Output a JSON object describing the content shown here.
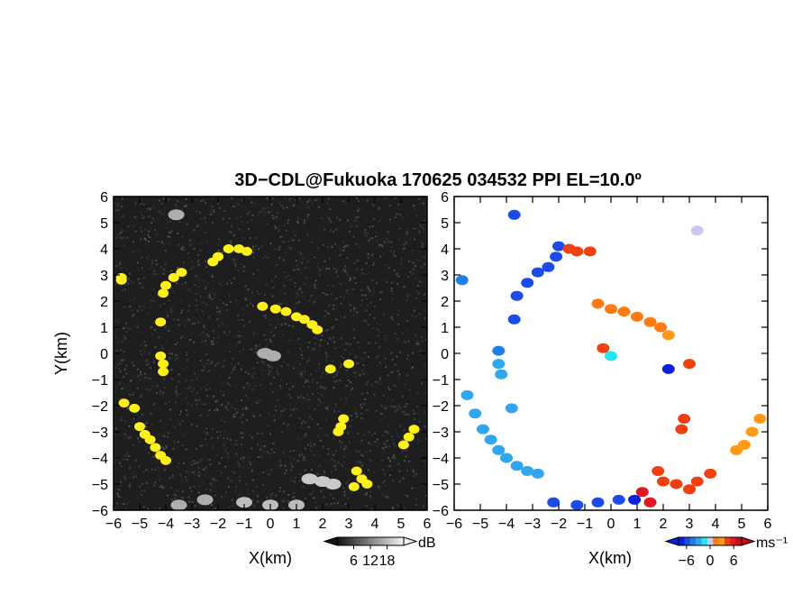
{
  "chart_data": [
    {
      "type": "heatmap",
      "panel": "left",
      "title": "3D−CDL@Fukuoka 170625 034532 PPI EL=10.0º",
      "xlabel": "X(km)",
      "ylabel": "Y(km)",
      "xlim": [
        -6,
        6
      ],
      "ylim": [
        -6,
        6
      ],
      "xticks": [
        "−6",
        "−5",
        "−4",
        "−3",
        "−2",
        "−1",
        "0",
        "1",
        "2",
        "3",
        "4",
        "5",
        "6"
      ],
      "yticks": [
        "6",
        "5",
        "4",
        "3",
        "2",
        "1",
        "0",
        "−1",
        "−2",
        "−3",
        "−4",
        "−5",
        "−6"
      ],
      "background_color": "#1e1e1e",
      "highlight_color": "#ffef1a",
      "colorbar": {
        "unit": "dB",
        "ticks": [
          "6",
          "12",
          "18"
        ],
        "range": [
          0,
          24
        ]
      },
      "echoes": [
        {
          "x": -5.7,
          "y": 2.8,
          "v": 24
        },
        {
          "x": -5.7,
          "y": 2.9,
          "v": 24
        },
        {
          "x": -5.6,
          "y": -1.9,
          "v": 24
        },
        {
          "x": -5.2,
          "y": -2.1,
          "v": 24
        },
        {
          "x": -5.0,
          "y": -2.8,
          "v": 24
        },
        {
          "x": -4.8,
          "y": -3.1,
          "v": 24
        },
        {
          "x": -4.6,
          "y": -3.3,
          "v": 24
        },
        {
          "x": -4.4,
          "y": -3.6,
          "v": 24
        },
        {
          "x": -4.2,
          "y": -3.9,
          "v": 24
        },
        {
          "x": -4.0,
          "y": -4.1,
          "v": 24
        },
        {
          "x": -4.2,
          "y": 1.2,
          "v": 24
        },
        {
          "x": -4.1,
          "y": 2.3,
          "v": 24
        },
        {
          "x": -4.0,
          "y": 2.6,
          "v": 24
        },
        {
          "x": -3.7,
          "y": 2.9,
          "v": 24
        },
        {
          "x": -3.4,
          "y": 3.1,
          "v": 24
        },
        {
          "x": -2.2,
          "y": 3.5,
          "v": 24
        },
        {
          "x": -2.0,
          "y": 3.7,
          "v": 24
        },
        {
          "x": -1.6,
          "y": 4.0,
          "v": 24
        },
        {
          "x": -1.2,
          "y": 4.0,
          "v": 24
        },
        {
          "x": -0.9,
          "y": 3.9,
          "v": 24
        },
        {
          "x": -4.2,
          "y": -0.1,
          "v": 24
        },
        {
          "x": -4.1,
          "y": -0.4,
          "v": 24
        },
        {
          "x": -4.1,
          "y": -0.7,
          "v": 24
        },
        {
          "x": -0.3,
          "y": 1.8,
          "v": 24
        },
        {
          "x": 0.2,
          "y": 1.7,
          "v": 24
        },
        {
          "x": 0.6,
          "y": 1.6,
          "v": 24
        },
        {
          "x": 1.0,
          "y": 1.4,
          "v": 24
        },
        {
          "x": 1.3,
          "y": 1.3,
          "v": 24
        },
        {
          "x": 1.6,
          "y": 1.1,
          "v": 24
        },
        {
          "x": 1.8,
          "y": 0.9,
          "v": 24
        },
        {
          "x": 2.3,
          "y": -0.6,
          "v": 24
        },
        {
          "x": 3.0,
          "y": -0.4,
          "v": 24
        },
        {
          "x": 2.8,
          "y": -2.5,
          "v": 24
        },
        {
          "x": 2.7,
          "y": -2.8,
          "v": 24
        },
        {
          "x": 2.6,
          "y": -3.0,
          "v": 24
        },
        {
          "x": 3.3,
          "y": -4.5,
          "v": 24
        },
        {
          "x": 3.5,
          "y": -4.8,
          "v": 24
        },
        {
          "x": 3.7,
          "y": -5.0,
          "v": 24
        },
        {
          "x": 3.2,
          "y": -5.1,
          "v": 24
        },
        {
          "x": 5.5,
          "y": -2.9,
          "v": 24
        },
        {
          "x": 5.3,
          "y": -3.2,
          "v": 24
        },
        {
          "x": 5.1,
          "y": -3.5,
          "v": 24
        },
        {
          "x": 1.5,
          "y": -4.8,
          "v": 16
        },
        {
          "x": 2.0,
          "y": -4.9,
          "v": 16
        },
        {
          "x": 2.4,
          "y": -5.0,
          "v": 16
        },
        {
          "x": -1.0,
          "y": -5.7,
          "v": 14
        },
        {
          "x": 0.0,
          "y": -5.8,
          "v": 14
        },
        {
          "x": 1.0,
          "y": -5.8,
          "v": 14
        },
        {
          "x": -3.5,
          "y": -5.8,
          "v": 12
        },
        {
          "x": -2.5,
          "y": -5.6,
          "v": 12
        },
        {
          "x": -0.2,
          "y": 0.0,
          "v": 12
        },
        {
          "x": 0.1,
          "y": -0.1,
          "v": 12
        },
        {
          "x": -3.6,
          "y": 5.3,
          "v": 12
        }
      ]
    },
    {
      "type": "heatmap",
      "panel": "right",
      "xlabel": "X(km)",
      "xlim": [
        -6,
        6
      ],
      "ylim": [
        -6,
        6
      ],
      "xticks": [
        "−6",
        "−5",
        "−4",
        "−3",
        "−2",
        "−1",
        "0",
        "1",
        "2",
        "3",
        "4",
        "5",
        "6"
      ],
      "yticks": [
        "6",
        "5",
        "4",
        "3",
        "2",
        "1",
        "0",
        "−1",
        "−2",
        "−3",
        "−4",
        "−5",
        "−6"
      ],
      "colorbar": {
        "unit": "ms⁻¹",
        "ticks": [
          "−6",
          "0",
          "6"
        ],
        "range": [
          -8,
          8
        ]
      },
      "echoes": [
        {
          "x": -5.7,
          "y": 2.8,
          "v": -4.5
        },
        {
          "x": -5.5,
          "y": -1.6,
          "v": -3.5
        },
        {
          "x": -5.2,
          "y": -2.3,
          "v": -3.3
        },
        {
          "x": -4.9,
          "y": -2.9,
          "v": -3.3
        },
        {
          "x": -4.6,
          "y": -3.3,
          "v": -3.2
        },
        {
          "x": -4.3,
          "y": -3.7,
          "v": -3.1
        },
        {
          "x": -4.0,
          "y": -4.0,
          "v": -3.1
        },
        {
          "x": -3.6,
          "y": -4.3,
          "v": -3.0
        },
        {
          "x": -3.2,
          "y": -4.5,
          "v": -3.0
        },
        {
          "x": -2.8,
          "y": -4.6,
          "v": -3.0
        },
        {
          "x": -4.3,
          "y": 0.1,
          "v": -4.2
        },
        {
          "x": -4.3,
          "y": -0.4,
          "v": -4.0
        },
        {
          "x": -4.2,
          "y": -0.8,
          "v": -4.0
        },
        {
          "x": -3.8,
          "y": -2.1,
          "v": -3.4
        },
        {
          "x": -3.6,
          "y": 2.2,
          "v": -6.0
        },
        {
          "x": -3.2,
          "y": 2.7,
          "v": -6.0
        },
        {
          "x": -2.8,
          "y": 3.1,
          "v": -6.0
        },
        {
          "x": -2.4,
          "y": 3.3,
          "v": -6.0
        },
        {
          "x": -2.1,
          "y": 3.7,
          "v": -6.0
        },
        {
          "x": -3.7,
          "y": 1.3,
          "v": -5.8
        },
        {
          "x": -3.7,
          "y": 5.3,
          "v": -6.0
        },
        {
          "x": -2.0,
          "y": 4.1,
          "v": -6.0
        },
        {
          "x": -1.6,
          "y": 4.0,
          "v": 5.5
        },
        {
          "x": -1.3,
          "y": 3.9,
          "v": 5.5
        },
        {
          "x": -0.8,
          "y": 3.9,
          "v": 5.5
        },
        {
          "x": -0.5,
          "y": 1.9,
          "v": 4.0
        },
        {
          "x": 0.0,
          "y": 1.7,
          "v": 4.0
        },
        {
          "x": 0.5,
          "y": 1.6,
          "v": 4.1
        },
        {
          "x": 1.0,
          "y": 1.4,
          "v": 4.2
        },
        {
          "x": 1.5,
          "y": 1.2,
          "v": 4.2
        },
        {
          "x": 1.9,
          "y": 1.0,
          "v": 4.3
        },
        {
          "x": 2.2,
          "y": 0.7,
          "v": 4.5
        },
        {
          "x": 0.0,
          "y": -0.1,
          "v": -0.6
        },
        {
          "x": -0.3,
          "y": 0.2,
          "v": 5.0
        },
        {
          "x": 3.0,
          "y": -0.4,
          "v": 6.0
        },
        {
          "x": 2.2,
          "y": -0.6,
          "v": -7.0
        },
        {
          "x": 2.8,
          "y": -2.5,
          "v": 6.0
        },
        {
          "x": 2.7,
          "y": -2.9,
          "v": 6.0
        },
        {
          "x": 5.7,
          "y": -2.5,
          "v": 4.5
        },
        {
          "x": 5.4,
          "y": -3.0,
          "v": 4.6
        },
        {
          "x": 5.1,
          "y": -3.5,
          "v": 4.6
        },
        {
          "x": 4.8,
          "y": -3.7,
          "v": 4.7
        },
        {
          "x": 1.8,
          "y": -4.5,
          "v": 6.0
        },
        {
          "x": 2.0,
          "y": -4.9,
          "v": 6.0
        },
        {
          "x": 2.5,
          "y": -5.0,
          "v": 6.0
        },
        {
          "x": 3.3,
          "y": -4.9,
          "v": 5.5
        },
        {
          "x": 3.8,
          "y": -4.6,
          "v": 5.5
        },
        {
          "x": 3.0,
          "y": -5.2,
          "v": 5.5
        },
        {
          "x": 1.2,
          "y": -5.3,
          "v": 6.5
        },
        {
          "x": 0.9,
          "y": -5.6,
          "v": -7.0
        },
        {
          "x": 0.3,
          "y": -5.6,
          "v": -6.5
        },
        {
          "x": -0.5,
          "y": -5.7,
          "v": -6.0
        },
        {
          "x": -1.3,
          "y": -5.8,
          "v": -6.0
        },
        {
          "x": -2.2,
          "y": -5.7,
          "v": -6.0
        },
        {
          "x": 1.5,
          "y": -5.7,
          "v": 6.5
        },
        {
          "x": 3.3,
          "y": 4.7,
          "v": 0.2
        }
      ]
    }
  ]
}
